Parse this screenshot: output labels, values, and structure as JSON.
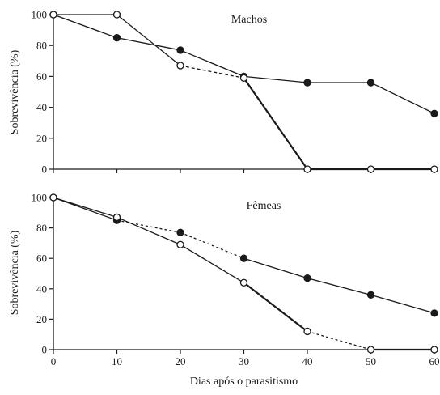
{
  "chart_data": [
    {
      "type": "line",
      "title": "Machos",
      "xlabel": "",
      "ylabel": "Sobrevivência (%)",
      "x": [
        0,
        10,
        20,
        30,
        40,
        50,
        60
      ],
      "xticks": [
        "0",
        "10",
        "20",
        "30",
        "40",
        "50",
        "60"
      ],
      "xlim": [
        0,
        60
      ],
      "ylim": [
        0,
        100
      ],
      "yticks": [
        "0",
        "20",
        "40",
        "60",
        "80",
        "100"
      ],
      "grid": false,
      "series": [
        {
          "marker": "filled-circle",
          "color": "#1a1a1a",
          "values": [
            100,
            85,
            77,
            60,
            56,
            56,
            36
          ]
        },
        {
          "marker": "open-circle",
          "color": "#1a1a1a",
          "values": [
            100,
            100,
            67,
            59,
            0,
            0,
            0
          ]
        }
      ]
    },
    {
      "type": "line",
      "title": "Fêmeas",
      "xlabel": "Dias após o parasitismo",
      "ylabel": "Sobrevivência (%)",
      "x": [
        0,
        10,
        20,
        30,
        40,
        50,
        60
      ],
      "xticks": [
        "0",
        "10",
        "20",
        "30",
        "40",
        "50",
        "60"
      ],
      "xlim": [
        0,
        60
      ],
      "ylim": [
        0,
        100
      ],
      "yticks": [
        "0",
        "20",
        "40",
        "60",
        "80",
        "100"
      ],
      "grid": false,
      "series": [
        {
          "marker": "filled-circle",
          "color": "#1a1a1a",
          "values": [
            100,
            85,
            77,
            60,
            47,
            36,
            24
          ]
        },
        {
          "marker": "open-circle",
          "color": "#1a1a1a",
          "values": [
            100,
            87,
            69,
            44,
            12,
            0,
            0
          ]
        }
      ]
    }
  ]
}
